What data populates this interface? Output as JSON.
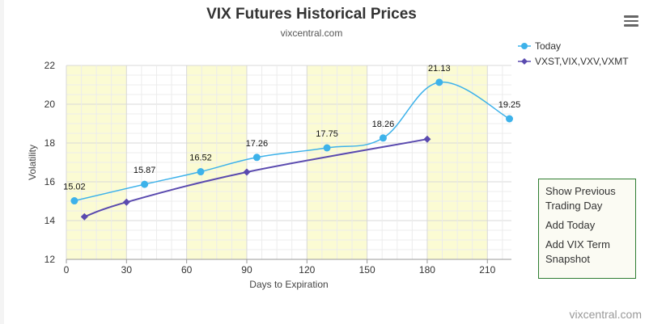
{
  "header": {
    "title": "VIX Futures Historical Prices",
    "subtitle": "vixcentral.com"
  },
  "menu": {
    "icon": "hamburger-menu-icon"
  },
  "side_menu": {
    "items": [
      "Show Previous Trading Day",
      "Add Today",
      "Add VIX Term Snapshot"
    ]
  },
  "footer": {
    "credit": "vixcentral.com"
  },
  "chart_data": {
    "type": "line",
    "xlabel": "Days to Expiration",
    "ylabel": "Volatility",
    "xlim": [
      0,
      222
    ],
    "ylim": [
      12,
      22
    ],
    "x_ticks": [
      0,
      30,
      60,
      90,
      120,
      150,
      180,
      210
    ],
    "y_ticks": [
      12,
      14,
      16,
      18,
      20,
      22
    ],
    "grid": true,
    "legend_position": "top-right",
    "highlight_bands": [
      [
        0,
        30
      ],
      [
        60,
        90
      ],
      [
        120,
        150
      ],
      [
        180,
        210
      ]
    ],
    "series": [
      {
        "name": "Today",
        "color": "#3db2ea",
        "marker": "circle",
        "x": [
          4,
          39,
          67,
          95,
          130,
          158,
          186,
          221
        ],
        "y": [
          15.02,
          15.87,
          16.52,
          17.26,
          17.75,
          18.26,
          21.13,
          19.25
        ],
        "labels": [
          "15.02",
          "15.87",
          "16.52",
          "17.26",
          "17.75",
          "18.26",
          "21.13",
          "19.25"
        ]
      },
      {
        "name": "VXST,VIX,VXV,VXMT",
        "color": "#5a4aaf",
        "marker": "diamond",
        "x": [
          9,
          30,
          90,
          180
        ],
        "y": [
          14.2,
          14.95,
          16.5,
          18.2
        ]
      }
    ]
  }
}
